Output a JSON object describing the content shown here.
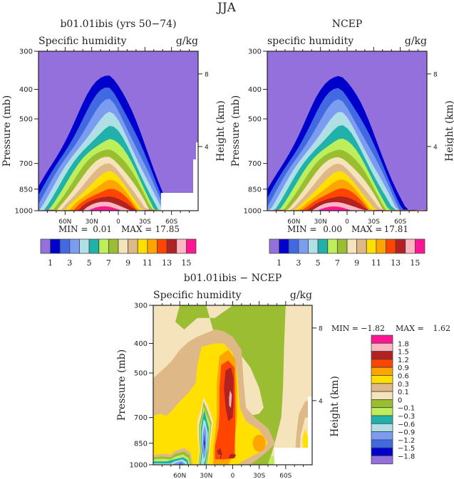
{
  "page_title": "JJA",
  "colors": {
    "q": [
      "#9370DB",
      "#0000CD",
      "#4169E1",
      "#7B9CF0",
      "#B0E0E6",
      "#20B2AA",
      "#BDEE5C",
      "#9ABD32",
      "#F5E3BC",
      "#DEB887",
      "#FFE000",
      "#FFA500",
      "#FF4500",
      "#B22222",
      "#FFB6C1",
      "#FF1493"
    ],
    "diff": [
      "#9370DB",
      "#0000CD",
      "#4169E1",
      "#7B9CF0",
      "#B0E0E6",
      "#20B2AA",
      "#BDEE5C",
      "#9ABD32",
      "#F5E3BC",
      "#DEB887",
      "#FFE000",
      "#FFA500",
      "#FF4500",
      "#B22222",
      "#FFB6C1",
      "#FF1493"
    ]
  },
  "chart_data": [
    {
      "type": "heatmap",
      "id": "model",
      "title": "b01.01ibis (yrs 50−74)",
      "left_label": "Specific humidity",
      "units": "g/kg",
      "ylabel": "Pressure (mb)",
      "ylabel_right": "Height (km)",
      "xlabel": "",
      "x_ticks": [
        "60N",
        "30N",
        "0",
        "30S",
        "60S"
      ],
      "y_ticks": [
        "300",
        "400",
        "500",
        "700",
        "850",
        "1000"
      ],
      "y_right_ticks": [
        "8",
        "4"
      ],
      "xlim": [
        "90N",
        "90S"
      ],
      "ylim": [
        1000,
        300
      ],
      "min_label": "MIN =",
      "min_value": "0.01",
      "max_label": "MAX =",
      "max_value": "17.85",
      "colorbar_labels": [
        "1",
        "3",
        "5",
        "7",
        "9",
        "11",
        "13",
        "15"
      ],
      "contour_levels": [
        1,
        2,
        3,
        4,
        5,
        6,
        7,
        8,
        9,
        10,
        11,
        12,
        13,
        14,
        15
      ]
    },
    {
      "type": "heatmap",
      "id": "obs",
      "title": "NCEP",
      "left_label": "specific humidity",
      "units": "g/kg",
      "ylabel": "Pressure (mb)",
      "ylabel_right": "Height (km)",
      "xlabel": "",
      "x_ticks": [
        "60N",
        "30N",
        "0",
        "30S",
        "60S"
      ],
      "y_ticks": [
        "300",
        "400",
        "500",
        "700",
        "850",
        "1000"
      ],
      "y_right_ticks": [
        "8",
        "4"
      ],
      "xlim": [
        "90N",
        "90S"
      ],
      "ylim": [
        1000,
        300
      ],
      "min_label": "MIN =",
      "min_value": "0.00",
      "max_label": "MAX =",
      "max_value": "17.81",
      "colorbar_labels": [
        "1",
        "3",
        "5",
        "7",
        "9",
        "11",
        "13",
        "15"
      ],
      "contour_levels": [
        1,
        2,
        3,
        4,
        5,
        6,
        7,
        8,
        9,
        10,
        11,
        12,
        13,
        14,
        15
      ]
    },
    {
      "type": "heatmap",
      "id": "diff",
      "title": "b01.01ibis − NCEP",
      "left_label": "Specific humidity",
      "units": "g/kg",
      "ylabel": "Pressure (mb)",
      "ylabel_right": "Height (km)",
      "xlabel": "",
      "x_ticks": [
        "60N",
        "30N",
        "0",
        "30S",
        "60S"
      ],
      "y_ticks": [
        "300",
        "400",
        "500",
        "700",
        "850",
        "1000"
      ],
      "y_right_ticks": [
        "8",
        "4"
      ],
      "xlim": [
        "90N",
        "90S"
      ],
      "ylim": [
        1000,
        300
      ],
      "min_label": "MIN =",
      "min_value": "−1.82",
      "max_label": "MAX =",
      "max_value": "1.62",
      "colorbar_labels": [
        "1.8",
        "1.5",
        "1.2",
        "0.9",
        "0.6",
        "0.3",
        "0.1",
        "0",
        "−0.1",
        "−0.3",
        "−0.6",
        "−0.9",
        "−1.2",
        "−1.5",
        "−1.8"
      ],
      "contour_levels": [
        -1.8,
        -1.5,
        -1.2,
        -0.9,
        -0.6,
        -0.3,
        -0.1,
        0,
        0.1,
        0.3,
        0.6,
        0.9,
        1.2,
        1.5,
        1.8
      ]
    }
  ]
}
